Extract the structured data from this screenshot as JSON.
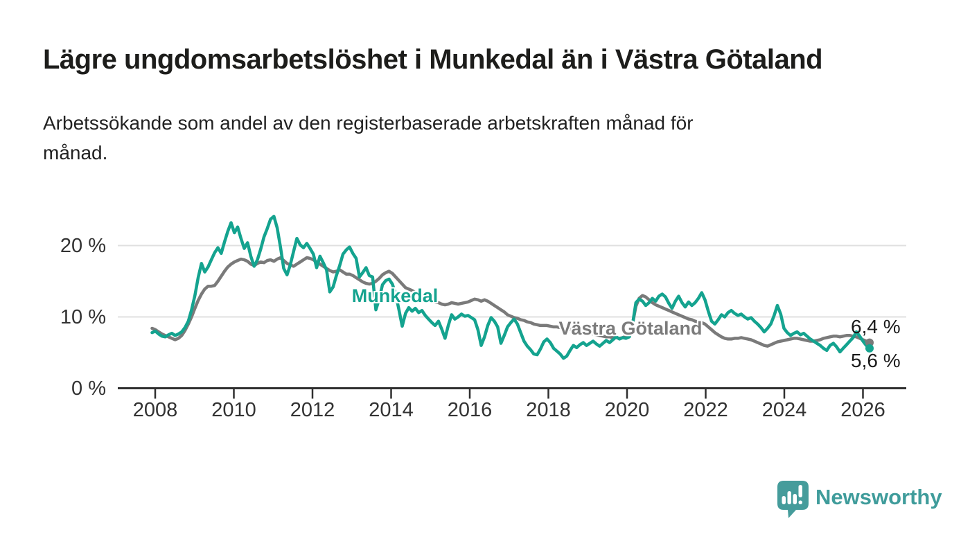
{
  "title": "Lägre ungdomsarbetslöshet i Munkedal än i Västra Götaland",
  "subtitle_line1": "Arbetssökande som andel av den registerbaserade arbetskraften månad för",
  "subtitle_line2": "månad.",
  "annotations": {
    "munkedal_label": "Munkedal",
    "vastra_gotaland_label": "Västra Götaland",
    "end_value_top": "6,4 %",
    "end_value_bottom": "5,6 %"
  },
  "branding": {
    "logo_text": "Newsworthy",
    "logo_color": "#3F9C9B",
    "logo_icon": "speech-bubble-bar-chart-exclamation"
  },
  "colors": {
    "munkedal": "#14A38F",
    "vastra_gotaland": "#7A7A7A",
    "gridline": "#e0e0e0",
    "axis": "#2f2f2f",
    "text": "#333333"
  },
  "chart_data": {
    "type": "line",
    "title": "Lägre ungdomsarbetslöshet i Munkedal än i Västra Götaland",
    "subtitle": "Arbetssökande som andel av den registerbaserade arbetskraften månad för månad.",
    "frequency": "monthly",
    "start": "2008-01",
    "end": "2026-03",
    "ylabel": "",
    "xlabel": "",
    "ylim": [
      0,
      25
    ],
    "grid": "horizontal",
    "y_ticks": [
      {
        "value": 0,
        "label": "0 %"
      },
      {
        "value": 10,
        "label": "10 %"
      },
      {
        "value": 20,
        "label": "20 %"
      }
    ],
    "x_ticks": [
      {
        "year": 2008,
        "label": "2008"
      },
      {
        "year": 2010,
        "label": "2010"
      },
      {
        "year": 2012,
        "label": "2012"
      },
      {
        "year": 2014,
        "label": "2014"
      },
      {
        "year": 2016,
        "label": "2016"
      },
      {
        "year": 2018,
        "label": "2018"
      },
      {
        "year": 2020,
        "label": "2020"
      },
      {
        "year": 2022,
        "label": "2022"
      },
      {
        "year": 2024,
        "label": "2024"
      },
      {
        "year": 2026,
        "label": "2026"
      }
    ],
    "series": [
      {
        "name": "Västra Götaland",
        "color": "#7A7A7A",
        "last_value_label": "6,4 %",
        "values": [
          8.4,
          8.2,
          7.9,
          7.6,
          7.4,
          7.2,
          7.0,
          6.8,
          7.0,
          7.4,
          8.1,
          9.0,
          10.0,
          11.2,
          12.3,
          13.2,
          13.9,
          14.3,
          14.3,
          14.4,
          15.0,
          15.7,
          16.4,
          17.0,
          17.4,
          17.7,
          17.9,
          18.1,
          18.0,
          17.8,
          17.4,
          17.2,
          17.5,
          17.7,
          17.6,
          17.9,
          18.0,
          17.8,
          18.1,
          18.3,
          17.9,
          17.5,
          17.3,
          17.1,
          17.4,
          17.7,
          18.0,
          18.3,
          18.2,
          18.0,
          17.7,
          17.4,
          17.1,
          16.8,
          16.5,
          16.3,
          16.4,
          16.6,
          16.3,
          16.0,
          16.0,
          15.8,
          15.5,
          15.2,
          14.9,
          14.7,
          14.6,
          14.7,
          15.0,
          15.4,
          15.9,
          16.2,
          16.4,
          16.1,
          15.6,
          15.1,
          14.6,
          14.1,
          13.9,
          13.7,
          13.4,
          13.1,
          12.9,
          12.7,
          12.5,
          12.3,
          12.1,
          12.0,
          11.8,
          11.7,
          11.8,
          12.0,
          11.9,
          11.8,
          11.9,
          12.0,
          12.1,
          12.3,
          12.5,
          12.4,
          12.2,
          12.4,
          12.2,
          11.9,
          11.6,
          11.3,
          11.0,
          10.7,
          10.3,
          10.1,
          9.9,
          9.8,
          9.6,
          9.5,
          9.3,
          9.2,
          9.0,
          8.9,
          8.8,
          8.8,
          8.8,
          8.7,
          8.6,
          8.6,
          8.5,
          8.5,
          8.4,
          8.3,
          8.2,
          8.1,
          8.0,
          7.9,
          7.8,
          7.7,
          7.6,
          7.5,
          7.4,
          7.3,
          7.2,
          7.2,
          7.1,
          7.1,
          7.0,
          7.1,
          7.3,
          7.5,
          9.0,
          11.5,
          12.6,
          13.0,
          12.8,
          12.4,
          12.0,
          11.7,
          11.5,
          11.3,
          11.1,
          10.9,
          10.7,
          10.5,
          10.3,
          10.1,
          9.9,
          9.7,
          9.6,
          9.4,
          9.3,
          9.2,
          9.0,
          8.6,
          8.2,
          7.8,
          7.5,
          7.2,
          7.0,
          6.9,
          6.9,
          7.0,
          7.0,
          7.1,
          7.0,
          6.9,
          6.8,
          6.6,
          6.4,
          6.2,
          6.0,
          5.9,
          6.1,
          6.3,
          6.5,
          6.6,
          6.7,
          6.8,
          6.9,
          7.0,
          7.0,
          6.9,
          6.8,
          6.7,
          6.6,
          6.6,
          6.7,
          6.8,
          7.0,
          7.1,
          7.2,
          7.3,
          7.3,
          7.2,
          7.3,
          7.4,
          7.4,
          7.3,
          7.2,
          7.0,
          6.8,
          6.6,
          6.4
        ]
      },
      {
        "name": "Munkedal",
        "color": "#14A38F",
        "last_value_label": "5,6 %",
        "values": [
          7.8,
          8.0,
          7.6,
          7.3,
          7.2,
          7.5,
          7.7,
          7.4,
          7.6,
          7.9,
          8.5,
          9.4,
          11.0,
          13.0,
          15.5,
          17.5,
          16.3,
          17.0,
          18.0,
          19.0,
          19.7,
          18.9,
          20.5,
          22.0,
          23.2,
          21.8,
          22.6,
          21.0,
          19.6,
          20.4,
          18.5,
          17.1,
          18.0,
          19.5,
          21.2,
          22.4,
          23.7,
          24.1,
          22.5,
          19.8,
          16.8,
          15.9,
          17.3,
          19.2,
          21.0,
          20.1,
          19.7,
          20.3,
          19.6,
          18.8,
          16.9,
          18.5,
          17.6,
          16.6,
          13.5,
          14.2,
          15.8,
          17.2,
          18.8,
          19.4,
          19.8,
          18.9,
          18.2,
          15.6,
          16.2,
          16.9,
          15.8,
          15.6,
          11.0,
          12.5,
          14.5,
          15.1,
          15.3,
          14.6,
          13.2,
          11.0,
          8.7,
          10.5,
          11.3,
          10.8,
          11.2,
          10.6,
          10.9,
          10.2,
          9.7,
          9.2,
          8.8,
          9.4,
          8.3,
          7.0,
          8.8,
          10.3,
          9.7,
          10.0,
          10.4,
          10.1,
          10.2,
          9.9,
          9.6,
          8.2,
          6.0,
          7.2,
          8.8,
          9.9,
          9.4,
          8.6,
          6.3,
          7.4,
          8.6,
          9.2,
          9.7,
          9.0,
          7.8,
          6.6,
          5.9,
          5.4,
          4.8,
          4.7,
          5.5,
          6.5,
          6.9,
          6.4,
          5.6,
          5.2,
          4.8,
          4.2,
          4.5,
          5.3,
          6.0,
          5.7,
          6.1,
          6.4,
          6.0,
          6.3,
          6.6,
          6.2,
          5.9,
          6.3,
          6.7,
          6.4,
          6.8,
          7.2,
          6.9,
          7.1,
          7.0,
          7.2,
          9.0,
          12.0,
          12.5,
          12.2,
          11.6,
          12.0,
          12.6,
          12.2,
          12.9,
          13.2,
          12.8,
          11.9,
          11.2,
          12.2,
          12.9,
          12.0,
          11.4,
          12.1,
          11.6,
          12.0,
          12.6,
          13.4,
          12.4,
          10.8,
          9.4,
          9.0,
          9.6,
          10.3,
          10.0,
          10.6,
          10.9,
          10.5,
          10.2,
          10.4,
          10.0,
          9.7,
          9.9,
          9.4,
          9.0,
          8.5,
          7.9,
          8.4,
          9.0,
          10.2,
          11.6,
          10.4,
          8.4,
          7.8,
          7.4,
          7.7,
          7.9,
          7.5,
          7.7,
          7.3,
          6.9,
          6.6,
          6.3,
          6.0,
          5.6,
          5.3,
          6.0,
          6.3,
          5.8,
          5.1,
          5.6,
          6.1,
          6.6,
          7.1,
          7.9,
          7.3,
          6.6,
          6.0,
          5.6
        ]
      }
    ],
    "legend_position": "inline-labels"
  }
}
